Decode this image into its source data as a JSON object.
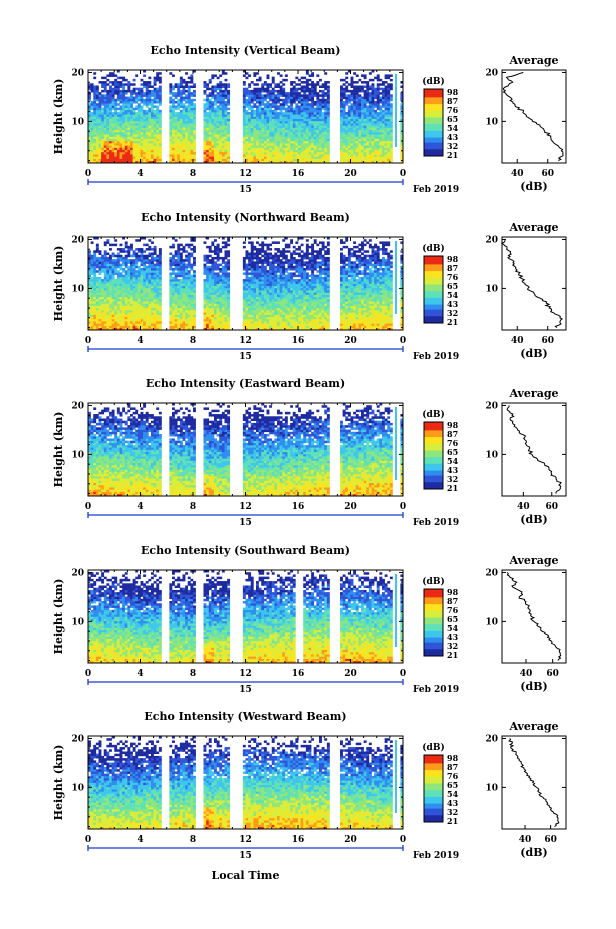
{
  "figure": {
    "date_label": "Feb 2019",
    "day_label": "15",
    "xlabel": "Local Time",
    "ylabel": "Height (km)",
    "avg_title": "Average",
    "avg_xlabel": "(dB)",
    "colorbar_unit": "(dB)",
    "colorbar_ticks": [
      "98",
      "87",
      "76",
      "65",
      "54",
      "43",
      "32",
      "21"
    ],
    "x_ticks": [
      "0",
      "4",
      "8",
      "12",
      "16",
      "20",
      "0"
    ],
    "y_ticks": [
      "20",
      "10"
    ],
    "avg_x_ticks": [
      "40",
      "60"
    ],
    "colors": {
      "scale": [
        "#1e2aa0",
        "#2f55d8",
        "#2f8ff0",
        "#3ec6ec",
        "#5ee0b8",
        "#8ee67c",
        "#d8ee3c",
        "#fde21e",
        "#fd9b1a",
        "#ea2a14"
      ],
      "line": "#000000",
      "axis_bar": "#1a3cd0"
    }
  },
  "chart_data": [
    {
      "type": "heatmap",
      "title": "Echo Intensity (Vertical Beam)",
      "x_range": [
        0,
        24
      ],
      "y_range": [
        1.5,
        20.5
      ],
      "value_range": [
        21,
        98
      ],
      "gaps_hours": [
        [
          5.6,
          6.1
        ],
        [
          8.3,
          8.7
        ],
        [
          10.8,
          11.1
        ],
        [
          11.3,
          11.7
        ],
        [
          18.4,
          19.2
        ],
        [
          23.3,
          23.8
        ]
      ],
      "average_profile": {
        "xlim": [
          30,
          72
        ],
        "height_km": [
          20,
          19,
          18,
          17,
          16,
          15,
          14,
          13,
          12,
          11,
          10,
          9,
          8,
          7,
          6,
          5,
          4,
          3,
          2
        ],
        "db": [
          44,
          33,
          37,
          32,
          31,
          35,
          37,
          39,
          44,
          46,
          50,
          55,
          58,
          62,
          63,
          67,
          69,
          70,
          67
        ]
      }
    },
    {
      "type": "heatmap",
      "title": "Echo Intensity (Northward Beam)",
      "x_range": [
        0,
        24
      ],
      "y_range": [
        1.5,
        20.5
      ],
      "value_range": [
        21,
        98
      ],
      "gaps_hours": [
        [
          5.6,
          6.1
        ],
        [
          8.3,
          8.7
        ],
        [
          10.8,
          11.1
        ],
        [
          11.3,
          11.7
        ],
        [
          18.4,
          19.2
        ],
        [
          23.3,
          23.8
        ]
      ],
      "average_profile": {
        "xlim": [
          30,
          72
        ],
        "height_km": [
          20,
          19,
          18,
          17,
          16,
          15,
          14,
          13,
          12,
          11,
          10,
          9,
          8,
          7,
          6,
          5,
          4,
          3,
          2
        ],
        "db": [
          32,
          31,
          33,
          36,
          35,
          38,
          39,
          41,
          43,
          45,
          47,
          51,
          55,
          59,
          61,
          64,
          68,
          68,
          66
        ]
      }
    },
    {
      "type": "heatmap",
      "title": "Echo Intensity (Eastward Beam)",
      "x_range": [
        0,
        24
      ],
      "y_range": [
        1.5,
        20.5
      ],
      "value_range": [
        21,
        96
      ],
      "gaps_hours": [
        [
          5.6,
          6.1
        ],
        [
          8.3,
          8.7
        ],
        [
          10.8,
          11.1
        ],
        [
          11.3,
          11.7
        ],
        [
          18.4,
          19.2
        ],
        [
          23.3,
          23.8
        ]
      ],
      "average_profile": {
        "xlim": [
          25,
          70
        ],
        "height_km": [
          20,
          19,
          18,
          17,
          16,
          15,
          14,
          13,
          12,
          11,
          10,
          9,
          8,
          7,
          6,
          5,
          4,
          3,
          2
        ],
        "db": [
          30,
          29,
          32,
          31,
          34,
          36,
          40,
          41,
          42,
          44,
          46,
          50,
          55,
          58,
          60,
          63,
          66,
          66,
          63
        ]
      }
    },
    {
      "type": "heatmap",
      "title": "Echo Intensity (Southward Beam)",
      "x_range": [
        0,
        24
      ],
      "y_range": [
        1.5,
        20.5
      ],
      "value_range": [
        21,
        98
      ],
      "gaps_hours": [
        [
          5.6,
          6.1
        ],
        [
          8.3,
          8.7
        ],
        [
          10.8,
          11.1
        ],
        [
          11.3,
          11.7
        ],
        [
          15.9,
          16.3
        ],
        [
          18.4,
          19.2
        ],
        [
          23.3,
          23.8
        ]
      ],
      "average_profile": {
        "xlim": [
          22,
          70
        ],
        "height_km": [
          20,
          19,
          18,
          17,
          16,
          15,
          14,
          13,
          12,
          11,
          10,
          9,
          8,
          7,
          6,
          5,
          4,
          3,
          2
        ],
        "db": [
          26,
          28,
          33,
          30,
          37,
          35,
          40,
          42,
          43,
          44,
          46,
          49,
          52,
          57,
          59,
          62,
          65,
          66,
          64
        ]
      }
    },
    {
      "type": "heatmap",
      "title": "Echo Intensity (Westward Beam)",
      "x_range": [
        0,
        24
      ],
      "y_range": [
        1.5,
        20.5
      ],
      "value_range": [
        21,
        98
      ],
      "gaps_hours": [
        [
          5.6,
          6.1
        ],
        [
          8.3,
          8.7
        ],
        [
          10.8,
          11.1
        ],
        [
          11.3,
          11.7
        ],
        [
          18.4,
          19.2
        ],
        [
          23.3,
          23.8
        ]
      ],
      "average_profile": {
        "xlim": [
          22,
          72
        ],
        "height_km": [
          20,
          19,
          18,
          17,
          16,
          15,
          14,
          13,
          12,
          11,
          10,
          9,
          8,
          7,
          6,
          5,
          4,
          3,
          2
        ],
        "db": [
          28,
          30,
          29,
          33,
          34,
          37,
          39,
          41,
          43,
          46,
          49,
          51,
          54,
          57,
          59,
          62,
          65,
          66,
          63
        ]
      }
    }
  ]
}
